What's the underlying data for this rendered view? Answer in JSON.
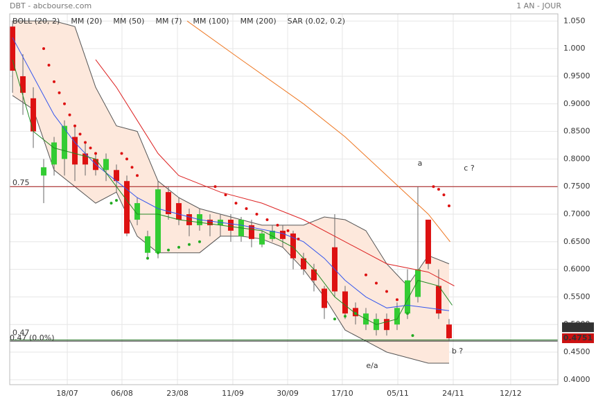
{
  "chart_data": {
    "type": "candlestick",
    "title": "DBT - abcbourse.com",
    "subtitle": "1 AN - JOUR",
    "x": [
      0,
      1,
      2,
      3,
      4,
      5,
      6,
      7,
      8,
      9,
      10,
      11,
      12,
      13,
      14,
      15,
      16,
      17,
      18,
      19,
      20,
      21,
      22,
      23,
      24,
      25,
      26,
      27,
      28,
      29,
      30,
      31,
      32,
      33,
      34,
      35,
      36,
      37,
      38,
      39,
      40,
      41,
      42
    ],
    "open": [
      1.04,
      0.95,
      0.91,
      0.77,
      0.79,
      0.8,
      0.84,
      0.81,
      0.8,
      0.78,
      0.78,
      0.76,
      0.69,
      0.63,
      0.63,
      0.74,
      0.72,
      0.7,
      0.68,
      0.69,
      0.68,
      0.69,
      0.66,
      0.68,
      0.645,
      0.655,
      0.67,
      0.665,
      0.62,
      0.6,
      0.565,
      0.64,
      0.56,
      0.53,
      0.5,
      0.49,
      0.51,
      0.5,
      0.52,
      0.55,
      0.69,
      0.57,
      0.5
    ],
    "high": [
      1.05,
      0.99,
      0.93,
      0.8,
      0.84,
      0.87,
      0.86,
      0.83,
      0.81,
      0.81,
      0.79,
      0.77,
      0.73,
      0.67,
      0.76,
      0.75,
      0.73,
      0.71,
      0.71,
      0.7,
      0.7,
      0.7,
      0.695,
      0.69,
      0.67,
      0.68,
      0.68,
      0.67,
      0.63,
      0.61,
      0.57,
      0.7,
      0.57,
      0.54,
      0.53,
      0.52,
      0.52,
      0.54,
      0.6,
      0.75,
      0.69,
      0.6,
      0.51
    ],
    "low": [
      0.92,
      0.88,
      0.82,
      0.72,
      0.77,
      0.77,
      0.76,
      0.77,
      0.77,
      0.76,
      0.74,
      0.66,
      0.68,
      0.62,
      0.62,
      0.69,
      0.68,
      0.66,
      0.67,
      0.66,
      0.66,
      0.65,
      0.65,
      0.64,
      0.64,
      0.65,
      0.64,
      0.6,
      0.59,
      0.56,
      0.51,
      0.55,
      0.51,
      0.5,
      0.49,
      0.48,
      0.48,
      0.49,
      0.51,
      0.54,
      0.6,
      0.51,
      0.47
    ],
    "close": [
      0.96,
      0.92,
      0.85,
      0.785,
      0.83,
      0.86,
      0.79,
      0.79,
      0.78,
      0.8,
      0.76,
      0.665,
      0.72,
      0.66,
      0.745,
      0.7,
      0.69,
      0.68,
      0.7,
      0.68,
      0.69,
      0.67,
      0.69,
      0.655,
      0.665,
      0.67,
      0.655,
      0.62,
      0.6,
      0.58,
      0.53,
      0.56,
      0.52,
      0.515,
      0.52,
      0.51,
      0.49,
      0.53,
      0.58,
      0.6,
      0.61,
      0.52,
      0.4751
    ],
    "up_color": "#33cc33",
    "down_color": "#dd1111",
    "series": [
      {
        "name": "BOLL (20, 2)",
        "color": "#555555",
        "band_fill": "#fde8dc",
        "x": [
          0,
          2,
          4,
          6,
          8,
          10,
          12,
          14,
          16,
          18,
          20,
          22,
          24,
          26,
          28,
          30,
          32,
          34,
          36,
          38,
          40,
          42
        ],
        "upper": [
          1.05,
          1.05,
          1.05,
          1.04,
          0.93,
          0.86,
          0.85,
          0.76,
          0.73,
          0.71,
          0.7,
          0.69,
          0.68,
          0.68,
          0.68,
          0.695,
          0.69,
          0.67,
          0.61,
          0.57,
          0.625,
          0.61
        ],
        "lower": [
          0.915,
          0.89,
          0.78,
          0.75,
          0.72,
          0.74,
          0.66,
          0.63,
          0.63,
          0.63,
          0.66,
          0.66,
          0.655,
          0.64,
          0.6,
          0.55,
          0.49,
          0.47,
          0.45,
          0.44,
          0.43,
          0.43
        ]
      },
      {
        "name": "MM (20)",
        "color": "#3355ee",
        "x": [
          0,
          2,
          4,
          6,
          8,
          10,
          12,
          14,
          18,
          22,
          26,
          28,
          30,
          32,
          34,
          36,
          38,
          40,
          42
        ],
        "values": [
          1.02,
          0.95,
          0.88,
          0.83,
          0.79,
          0.76,
          0.73,
          0.71,
          0.69,
          0.68,
          0.665,
          0.65,
          0.62,
          0.58,
          0.55,
          0.53,
          0.535,
          0.53,
          0.525
        ]
      },
      {
        "name": "MM (50)",
        "color": "#dd2222",
        "x": [
          8,
          10,
          12,
          14,
          16,
          20,
          24,
          28,
          32,
          36,
          40,
          42.5
        ],
        "values": [
          0.98,
          0.93,
          0.87,
          0.81,
          0.77,
          0.74,
          0.72,
          0.69,
          0.65,
          0.61,
          0.595,
          0.57
        ]
      },
      {
        "name": "MM (7)",
        "color": "#228822",
        "x": [
          0,
          2,
          4,
          6,
          8,
          10,
          12,
          14,
          16,
          20,
          24,
          27,
          29,
          31,
          33,
          35,
          37,
          39,
          41,
          42.3
        ],
        "values": [
          0.98,
          0.85,
          0.82,
          0.81,
          0.8,
          0.75,
          0.7,
          0.7,
          0.69,
          0.68,
          0.67,
          0.64,
          0.6,
          0.55,
          0.52,
          0.5,
          0.51,
          0.58,
          0.57,
          0.535
        ]
      },
      {
        "name": "MM (100)",
        "color": "#ee7722",
        "x": [
          16.8,
          22,
          28,
          32,
          36,
          40,
          42.1
        ],
        "values": [
          1.05,
          0.98,
          0.9,
          0.84,
          0.77,
          0.7,
          0.65
        ]
      },
      {
        "name": "MM (200)",
        "color": "#990000",
        "x": [],
        "values": []
      },
      {
        "name": "SAR (0.02, 0.2)",
        "color": "#dd1111",
        "kind": "dots",
        "x": [
          3,
          3.5,
          4,
          4.5,
          5,
          5.5,
          6,
          6.5,
          7,
          7.5,
          8,
          9.5,
          10,
          10.5,
          11,
          11.5,
          12,
          13,
          14,
          15,
          16,
          17,
          18,
          19.5,
          20.5,
          21.5,
          22.5,
          23.5,
          24.5,
          25.5,
          26.5,
          27.5,
          31,
          32,
          33,
          34,
          35,
          36,
          37,
          38,
          38.5,
          40.5,
          41,
          41.5,
          42
        ],
        "values": [
          1.0,
          0.97,
          0.94,
          0.92,
          0.9,
          0.88,
          0.86,
          0.845,
          0.83,
          0.82,
          0.81,
          0.72,
          0.725,
          0.81,
          0.8,
          0.785,
          0.77,
          0.62,
          0.63,
          0.635,
          0.64,
          0.645,
          0.65,
          0.75,
          0.735,
          0.72,
          0.71,
          0.7,
          0.69,
          0.68,
          0.67,
          0.655,
          0.51,
          0.515,
          0.52,
          0.59,
          0.575,
          0.56,
          0.545,
          0.52,
          0.48,
          0.75,
          0.745,
          0.735,
          0.715
        ],
        "colors": [
          "#dd1111",
          "#dd1111",
          "#dd1111",
          "#dd1111",
          "#dd1111",
          "#dd1111",
          "#dd1111",
          "#dd1111",
          "#dd1111",
          "#dd1111",
          "#dd1111",
          "#22aa22",
          "#22aa22",
          "#dd1111",
          "#dd1111",
          "#dd1111",
          "#dd1111",
          "#22aa22",
          "#22aa22",
          "#22aa22",
          "#22aa22",
          "#22aa22",
          "#22aa22",
          "#dd1111",
          "#dd1111",
          "#dd1111",
          "#dd1111",
          "#dd1111",
          "#dd1111",
          "#dd1111",
          "#dd1111",
          "#dd1111",
          "#22aa22",
          "#22aa22",
          "#22aa22",
          "#dd1111",
          "#dd1111",
          "#dd1111",
          "#dd1111",
          "#22aa22",
          "#22aa22",
          "#dd1111",
          "#dd1111",
          "#dd1111",
          "#dd1111"
        ]
      }
    ],
    "xlim": [
      -0.27,
      52.47
    ],
    "xticks": [
      {
        "value": 5.27,
        "label": "18/07"
      },
      {
        "value": 10.53,
        "label": "06/08"
      },
      {
        "value": 15.87,
        "label": "23/08"
      },
      {
        "value": 21.2,
        "label": "11/09"
      },
      {
        "value": 26.47,
        "label": "30/09"
      },
      {
        "value": 31.73,
        "label": "17/10"
      },
      {
        "value": 37.07,
        "label": "05/11"
      },
      {
        "value": 42.4,
        "label": "24/11"
      },
      {
        "value": 47.93,
        "label": "12/12"
      }
    ],
    "ylim": [
      0.391,
      1.063
    ],
    "yticks": [
      {
        "value": 0.4,
        "label": "0.4000"
      },
      {
        "value": 0.45,
        "label": "0.4500"
      },
      {
        "value": 0.5,
        "label": "0.5000"
      },
      {
        "value": 0.55,
        "label": "0.5500"
      },
      {
        "value": 0.6,
        "label": "0.6000"
      },
      {
        "value": 0.65,
        "label": "0.6500"
      },
      {
        "value": 0.7,
        "label": "0.7000"
      },
      {
        "value": 0.75,
        "label": "0.7500"
      },
      {
        "value": 0.8,
        "label": "0.8000"
      },
      {
        "value": 0.85,
        "label": "0.8500"
      },
      {
        "value": 0.9,
        "label": "0.9000"
      },
      {
        "value": 0.95,
        "label": "0.9500"
      },
      {
        "value": 1.0,
        "label": "1.000"
      },
      {
        "value": 1.05,
        "label": "1.050"
      }
    ],
    "grid": true,
    "levels": [
      {
        "value": 0.75,
        "label": "0.75",
        "color": "#a01010"
      },
      {
        "value": 0.472,
        "label": "0.47",
        "color": "#2a7a2a"
      },
      {
        "value": 0.47,
        "label": "0.47 (0.0%)",
        "color": "#222222"
      }
    ],
    "price_markers": [
      {
        "value": 0.495,
        "label": "0.4950",
        "color": "#333333"
      },
      {
        "value": 0.4751,
        "label": "0.4751",
        "color": "#cc1111"
      }
    ],
    "annotations": [
      "a",
      "c ?",
      "b ?",
      "e/a"
    ]
  }
}
